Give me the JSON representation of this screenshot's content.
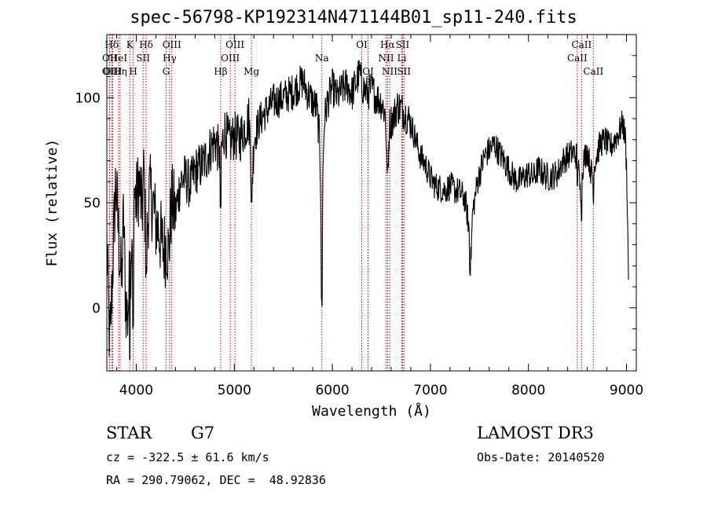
{
  "chart_data": {
    "type": "line",
    "title": "spec-56798-KP192314N471144B01_sp11-240.fits",
    "xlabel": "Wavelength (Å)",
    "ylabel": "Flux (relative)",
    "xlim": [
      3700,
      9100
    ],
    "ylim": [
      -30,
      130
    ],
    "xticks": [
      4000,
      5000,
      6000,
      7000,
      8000,
      9000
    ],
    "yticks": [
      0,
      50,
      100
    ],
    "grid": false,
    "series_color": "#000000",
    "line_color": "#cc0000",
    "anchors": [
      [
        3700,
        30
      ],
      [
        3730,
        -20
      ],
      [
        3760,
        20
      ],
      [
        3790,
        60
      ],
      [
        3820,
        35
      ],
      [
        3850,
        10
      ],
      [
        3870,
        45
      ],
      [
        3890,
        5
      ],
      [
        3910,
        -5
      ],
      [
        3935,
        15
      ],
      [
        3960,
        40
      ],
      [
        3980,
        55
      ],
      [
        4000,
        50
      ],
      [
        4030,
        60
      ],
      [
        4060,
        45
      ],
      [
        4080,
        65
      ],
      [
        4101,
        20
      ],
      [
        4130,
        55
      ],
      [
        4170,
        50
      ],
      [
        4200,
        40
      ],
      [
        4230,
        38
      ],
      [
        4260,
        30
      ],
      [
        4290,
        28
      ],
      [
        4310,
        32
      ],
      [
        4330,
        25
      ],
      [
        4360,
        50
      ],
      [
        4400,
        45
      ],
      [
        4450,
        60
      ],
      [
        4500,
        62
      ],
      [
        4550,
        58
      ],
      [
        4600,
        65
      ],
      [
        4650,
        67
      ],
      [
        4700,
        70
      ],
      [
        4750,
        75
      ],
      [
        4800,
        80
      ],
      [
        4860,
        72
      ],
      [
        4900,
        85
      ],
      [
        4950,
        78
      ],
      [
        5000,
        82
      ],
      [
        5050,
        80
      ],
      [
        5100,
        85
      ],
      [
        5150,
        90
      ],
      [
        5170,
        72
      ],
      [
        5185,
        62
      ],
      [
        5200,
        80
      ],
      [
        5250,
        88
      ],
      [
        5300,
        92
      ],
      [
        5400,
        98
      ],
      [
        5500,
        100
      ],
      [
        5600,
        103
      ],
      [
        5700,
        108
      ],
      [
        5750,
        102
      ],
      [
        5800,
        98
      ],
      [
        5840,
        95
      ],
      [
        5870,
        80
      ],
      [
        5880,
        60
      ],
      [
        5893,
        2
      ],
      [
        5905,
        70
      ],
      [
        5920,
        90
      ],
      [
        5950,
        98
      ],
      [
        6000,
        105
      ],
      [
        6050,
        100
      ],
      [
        6100,
        104
      ],
      [
        6150,
        106
      ],
      [
        6200,
        102
      ],
      [
        6250,
        108
      ],
      [
        6280,
        112
      ],
      [
        6300,
        106
      ],
      [
        6350,
        102
      ],
      [
        6400,
        104
      ],
      [
        6450,
        100
      ],
      [
        6500,
        98
      ],
      [
        6540,
        92
      ],
      [
        6563,
        66
      ],
      [
        6585,
        88
      ],
      [
        6620,
        90
      ],
      [
        6660,
        96
      ],
      [
        6700,
        95
      ],
      [
        6750,
        92
      ],
      [
        6800,
        88
      ],
      [
        6850,
        80
      ],
      [
        6900,
        72
      ],
      [
        6950,
        68
      ],
      [
        7000,
        62
      ],
      [
        7050,
        58
      ],
      [
        7100,
        57
      ],
      [
        7150,
        56
      ],
      [
        7200,
        58
      ],
      [
        7250,
        56
      ],
      [
        7300,
        55
      ],
      [
        7350,
        52
      ],
      [
        7390,
        40
      ],
      [
        7410,
        20
      ],
      [
        7430,
        45
      ],
      [
        7480,
        60
      ],
      [
        7550,
        72
      ],
      [
        7600,
        75
      ],
      [
        7650,
        78
      ],
      [
        7700,
        74
      ],
      [
        7750,
        70
      ],
      [
        7800,
        66
      ],
      [
        7850,
        62
      ],
      [
        7900,
        60
      ],
      [
        7950,
        62
      ],
      [
        8000,
        64
      ],
      [
        8050,
        62
      ],
      [
        8100,
        66
      ],
      [
        8150,
        64
      ],
      [
        8200,
        62
      ],
      [
        8250,
        63
      ],
      [
        8300,
        64
      ],
      [
        8350,
        70
      ],
      [
        8400,
        72
      ],
      [
        8450,
        74
      ],
      [
        8500,
        72
      ],
      [
        8530,
        54
      ],
      [
        8560,
        70
      ],
      [
        8600,
        75
      ],
      [
        8650,
        62
      ],
      [
        8680,
        70
      ],
      [
        8730,
        78
      ],
      [
        8780,
        80
      ],
      [
        8830,
        76
      ],
      [
        8880,
        80
      ],
      [
        8930,
        84
      ],
      [
        8960,
        88
      ],
      [
        8990,
        80
      ],
      [
        9005,
        60
      ],
      [
        9020,
        15
      ]
    ],
    "narrow_features": [
      [
        3934,
        -22
      ],
      [
        3969,
        -10
      ],
      [
        4101,
        18
      ],
      [
        4861,
        48
      ],
      [
        5175,
        52
      ],
      [
        5893,
        2
      ],
      [
        6563,
        66
      ],
      [
        7405,
        18
      ],
      [
        8498,
        60
      ],
      [
        8542,
        44
      ],
      [
        8662,
        52
      ]
    ],
    "lines": [
      {
        "label": "OII",
        "wavelength": 3727,
        "level": 3
      },
      {
        "label": "OIII",
        "wavelength": 3760,
        "level": 3
      },
      {
        "label": "Hη",
        "wavelength": 3835,
        "level": 3
      },
      {
        "label": "OII",
        "wavelength": 3729,
        "level": 2
      },
      {
        "label": "HeI",
        "wavelength": 3820,
        "level": 2
      },
      {
        "label": "SII",
        "wavelength": 4070,
        "level": 2
      },
      {
        "label": "Hδ",
        "wavelength": 3750,
        "level": 1
      },
      {
        "label": "K",
        "wavelength": 3934,
        "level": 1
      },
      {
        "label": "H",
        "wavelength": 3969,
        "level": 3
      },
      {
        "label": "Hδ",
        "wavelength": 4101,
        "level": 1
      },
      {
        "label": "OIII",
        "wavelength": 4363,
        "level": 1
      },
      {
        "label": "Hγ",
        "wavelength": 4340,
        "level": 2
      },
      {
        "label": "G",
        "wavelength": 4305,
        "level": 3
      },
      {
        "label": "Hβ",
        "wavelength": 4861,
        "level": 3
      },
      {
        "label": "OIII",
        "wavelength": 5007,
        "level": 1
      },
      {
        "label": "OIII",
        "wavelength": 4959,
        "level": 2
      },
      {
        "label": "Mg",
        "wavelength": 5175,
        "level": 3
      },
      {
        "label": "Na",
        "wavelength": 5893,
        "level": 2
      },
      {
        "label": "OI",
        "wavelength": 6300,
        "level": 1
      },
      {
        "label": "OI",
        "wavelength": 6364,
        "level": 3
      },
      {
        "label": "Hα",
        "wavelength": 6563,
        "level": 1
      },
      {
        "label": "SII",
        "wavelength": 6716,
        "level": 1
      },
      {
        "label": "NII",
        "wavelength": 6548,
        "level": 2
      },
      {
        "label": "Li",
        "wavelength": 6708,
        "level": 2
      },
      {
        "label": "NII",
        "wavelength": 6584,
        "level": 3
      },
      {
        "label": "SII",
        "wavelength": 6731,
        "level": 3
      },
      {
        "label": "CaII",
        "wavelength": 8542,
        "level": 1
      },
      {
        "label": "CaII",
        "wavelength": 8498,
        "level": 2
      },
      {
        "label": "CaII",
        "wavelength": 8662,
        "level": 3
      }
    ]
  },
  "info": {
    "object_class": "STAR",
    "subclass": "G7",
    "survey": "LAMOST DR3",
    "cz": "cz = -322.5 ± 61.6 km/s",
    "obs_date": "Obs-Date: 20140520",
    "radec": "RA = 290.79062, DEC =  48.92836"
  }
}
